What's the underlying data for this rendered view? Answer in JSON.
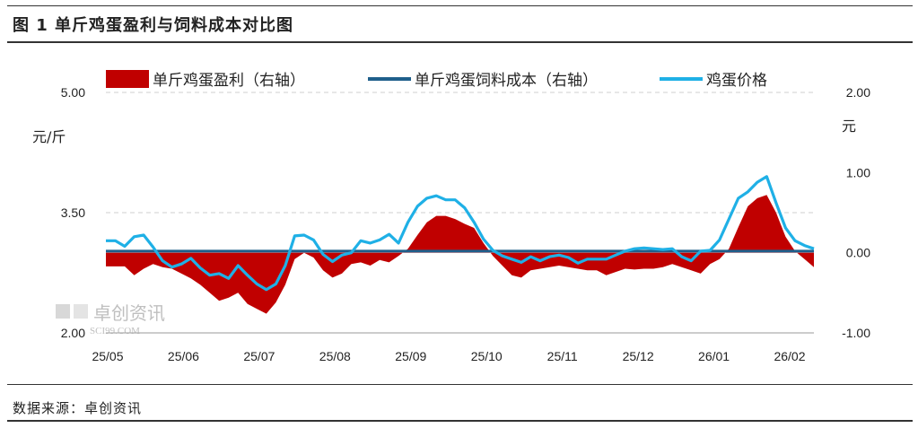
{
  "header": {
    "title": "图 1 单斤鸡蛋盈利与饲料成本对比图"
  },
  "footer": {
    "source": "数据来源：卓创资讯"
  },
  "watermark": {
    "main": "卓创资讯",
    "sub": "SCI99.COM"
  },
  "colors": {
    "profit": "#c00000",
    "cost": "#1f5f8b",
    "price": "#1fb0e6"
  },
  "chart_data": {
    "type": "line",
    "title": "图 1 单斤鸡蛋盈利与饲料成本对比图",
    "left_unit": "元/斤",
    "right_unit": "元",
    "left_ylim": [
      2.0,
      5.0
    ],
    "right_ylim": [
      -1.0,
      2.0
    ],
    "left_ticks": [
      "5.00",
      "3.50",
      "2.00"
    ],
    "right_ticks": [
      "2.00",
      "1.00",
      "0.00",
      "-1.00"
    ],
    "x_labels": [
      "25/05",
      "25/06",
      "25/07",
      "25/08",
      "25/09",
      "25/10",
      "25/11",
      "25/12",
      "26/01",
      "26/02"
    ],
    "grid": "dashed",
    "legend_position": "top",
    "series": [
      {
        "name": "单斤鸡蛋盈利（右轴）",
        "kind": "area",
        "axis": "right",
        "values": [
          -0.17,
          -0.17,
          -0.17,
          -0.28,
          -0.2,
          -0.14,
          -0.18,
          -0.2,
          -0.26,
          -0.32,
          -0.4,
          -0.5,
          -0.6,
          -0.56,
          -0.5,
          -0.64,
          -0.7,
          -0.76,
          -0.62,
          -0.4,
          -0.08,
          0.0,
          -0.06,
          -0.22,
          -0.31,
          -0.26,
          -0.14,
          -0.12,
          -0.16,
          -0.09,
          -0.12,
          -0.04,
          0.05,
          0.22,
          0.38,
          0.46,
          0.46,
          0.42,
          0.36,
          0.31,
          0.12,
          -0.04,
          -0.16,
          -0.28,
          -0.31,
          -0.22,
          -0.2,
          -0.18,
          -0.16,
          -0.18,
          -0.2,
          -0.22,
          -0.22,
          -0.28,
          -0.24,
          -0.2,
          -0.21,
          -0.2,
          -0.2,
          -0.18,
          -0.14,
          -0.18,
          -0.22,
          -0.26,
          -0.14,
          -0.08,
          0.05,
          0.32,
          0.58,
          0.68,
          0.72,
          0.5,
          0.2,
          0.02,
          -0.08,
          -0.18
        ]
      },
      {
        "name": "单斤鸡蛋饲料成本（右轴）",
        "kind": "line",
        "axis": "right",
        "values": [
          0.02,
          0.02,
          0.02,
          0.02,
          0.02,
          0.02,
          0.02,
          0.02,
          0.02,
          0.02,
          0.02,
          0.02,
          0.02,
          0.02,
          0.02,
          0.02,
          0.02,
          0.02,
          0.02,
          0.02,
          0.02,
          0.02,
          0.02,
          0.02,
          0.02,
          0.02,
          0.02,
          0.02,
          0.02,
          0.02,
          0.02,
          0.02,
          0.02,
          0.02,
          0.02,
          0.02,
          0.02,
          0.02,
          0.02,
          0.02,
          0.02,
          0.02,
          0.02,
          0.02,
          0.02,
          0.02,
          0.02,
          0.02,
          0.02,
          0.02,
          0.02,
          0.02,
          0.02,
          0.02,
          0.02,
          0.02,
          0.02,
          0.02,
          0.02,
          0.02,
          0.02,
          0.02,
          0.02,
          0.02,
          0.02,
          0.02,
          0.02,
          0.02,
          0.02,
          0.02,
          0.02,
          0.02,
          0.02,
          0.02,
          0.02,
          0.02
        ]
      },
      {
        "name": "鸡蛋价格",
        "kind": "line",
        "axis": "left",
        "values": [
          3.15,
          3.15,
          3.08,
          3.2,
          3.22,
          3.07,
          2.9,
          2.82,
          2.86,
          2.93,
          2.81,
          2.72,
          2.74,
          2.68,
          2.84,
          2.72,
          2.61,
          2.54,
          2.61,
          2.84,
          3.21,
          3.22,
          3.16,
          2.98,
          2.89,
          2.97,
          3.0,
          3.15,
          3.12,
          3.16,
          3.23,
          3.12,
          3.38,
          3.58,
          3.68,
          3.71,
          3.66,
          3.66,
          3.56,
          3.38,
          3.17,
          3.03,
          2.96,
          2.92,
          2.88,
          2.95,
          2.9,
          2.95,
          2.97,
          2.94,
          2.87,
          2.92,
          2.92,
          2.92,
          2.97,
          3.02,
          3.05,
          3.06,
          3.05,
          3.04,
          3.05,
          2.95,
          2.9,
          3.02,
          3.03,
          3.16,
          3.42,
          3.68,
          3.76,
          3.88,
          3.95,
          3.62,
          3.31,
          3.15,
          3.09,
          3.05
        ]
      }
    ]
  }
}
